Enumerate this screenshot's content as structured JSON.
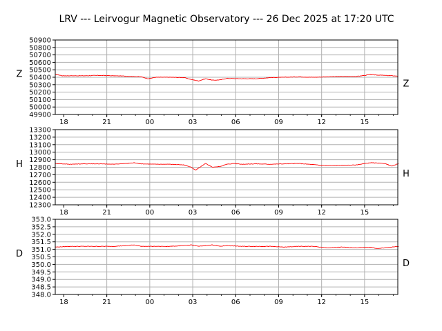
{
  "title": "LRV --- Leirvogur Magnetic Observatory --- 26 Dec 2025 at 17:20 UTC",
  "colors": {
    "trace": "#ff0000",
    "grid": "#b0b0b0",
    "axes": "#000000",
    "background": "#ffffff"
  },
  "chart_data": [
    {
      "type": "line",
      "component": "Z",
      "left_label": "Z",
      "right_label": "Z",
      "x_tick_labels": [
        "18",
        "21",
        "00",
        "03",
        "06",
        "09",
        "12",
        "15"
      ],
      "y_tick_labels": [
        "50900",
        "50800",
        "50700",
        "50600",
        "50500",
        "50400",
        "50300",
        "50200",
        "50100",
        "50000",
        "49900"
      ],
      "ylim": [
        49900,
        50900
      ],
      "grid": true,
      "x_hours": [
        0,
        0.5,
        1,
        2,
        3,
        4,
        5,
        6,
        6.5,
        7,
        8,
        9,
        9.5,
        10,
        10.5,
        11,
        11.5,
        12,
        13,
        14,
        15,
        16,
        17,
        18,
        19,
        20,
        21,
        22,
        22.5,
        23,
        24
      ],
      "values": [
        50440,
        50420,
        50420,
        50420,
        50425,
        50420,
        50415,
        50405,
        50380,
        50400,
        50400,
        50395,
        50370,
        50350,
        50380,
        50360,
        50365,
        50385,
        50380,
        50380,
        50395,
        50400,
        50405,
        50400,
        50405,
        50410,
        50410,
        50435,
        50430,
        50425,
        50415
      ]
    },
    {
      "type": "line",
      "component": "H",
      "left_label": "H",
      "right_label": "H",
      "x_tick_labels": [
        "18",
        "21",
        "00",
        "03",
        "06",
        "09",
        "12",
        "15"
      ],
      "y_tick_labels": [
        "13300",
        "13200",
        "13100",
        "13000",
        "12900",
        "12800",
        "12700",
        "12600",
        "12500",
        "12400",
        "12300"
      ],
      "ylim": [
        12300,
        13300
      ],
      "grid": true,
      "x_hours": [
        0,
        1,
        2,
        3,
        4,
        5,
        5.5,
        6,
        7,
        8,
        9,
        9.5,
        9.8,
        10.5,
        11,
        11.5,
        12,
        12.5,
        13,
        14,
        15,
        16,
        17,
        18,
        19,
        20,
        21,
        22,
        23,
        23.5,
        24
      ],
      "values": [
        12850,
        12840,
        12845,
        12845,
        12840,
        12850,
        12860,
        12845,
        12840,
        12840,
        12830,
        12800,
        12760,
        12850,
        12800,
        12810,
        12840,
        12850,
        12840,
        12845,
        12840,
        12845,
        12850,
        12835,
        12820,
        12825,
        12830,
        12860,
        12850,
        12815,
        12850
      ]
    },
    {
      "type": "line",
      "component": "D",
      "left_label": "D",
      "right_label": "D",
      "x_tick_labels": [
        "18",
        "21",
        "00",
        "03",
        "06",
        "09",
        "12",
        "15"
      ],
      "y_tick_labels": [
        "353.0",
        "352.5",
        "352.0",
        "351.5",
        "351.0",
        "350.5",
        "350.0",
        "349.5",
        "349.0",
        "348.5",
        "348.0"
      ],
      "ylim": [
        348.0,
        353.0
      ],
      "grid": true,
      "x_hours": [
        0,
        1,
        2,
        3,
        4,
        5,
        5.5,
        6,
        7,
        8,
        9,
        9.5,
        10,
        11,
        11.5,
        12,
        13,
        14,
        15,
        16,
        17,
        18,
        19,
        20,
        21,
        22,
        22.5,
        23,
        24
      ],
      "values": [
        351.15,
        351.2,
        351.2,
        351.2,
        351.2,
        351.25,
        351.3,
        351.2,
        351.2,
        351.2,
        351.25,
        351.3,
        351.2,
        351.3,
        351.2,
        351.25,
        351.2,
        351.2,
        351.2,
        351.15,
        351.2,
        351.2,
        351.1,
        351.15,
        351.1,
        351.15,
        351.05,
        351.1,
        351.2
      ]
    }
  ]
}
